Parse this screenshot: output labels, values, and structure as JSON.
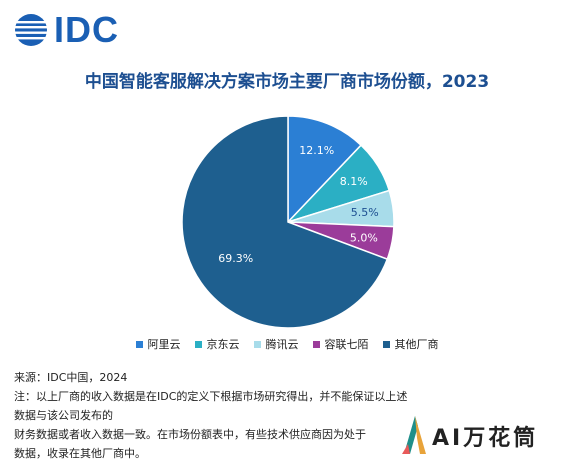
{
  "logo": {
    "text": "IDC"
  },
  "chart_data": {
    "type": "pie",
    "title": "中国智能客服解决方案市场主要厂商市场份额，2023",
    "slices": [
      {
        "label": "阿里云",
        "value": 12.1,
        "value_label": "12.1%",
        "color": "#2b7fd4"
      },
      {
        "label": "京东云",
        "value": 8.1,
        "value_label": "8.1%",
        "color": "#2bafc4"
      },
      {
        "label": "腾讯云",
        "value": 5.5,
        "value_label": "5.5%",
        "color": "#a8dcea"
      },
      {
        "label": "容联七陌",
        "value": 5.0,
        "value_label": "5.0%",
        "color": "#9b3c9a"
      },
      {
        "label": "其他厂商",
        "value": 69.3,
        "value_label": "69.3%",
        "color": "#1e5f8f"
      }
    ],
    "start": "12 o'clock",
    "direction": "clockwise",
    "legend": "bottom"
  },
  "notes": {
    "source": "来源：IDC中国，2024",
    "line1": "注：以上厂商的收入数据是在IDC的定义下根据市场研究得出，并不能保证以上述数据与该公司发布的",
    "line2": "财务数据或者收入数据一致。在市场份额表中，有些技术供应商因为处于",
    "line3": "数据，收录在其他厂商中。"
  },
  "watermark": {
    "text": "AI万花筒"
  }
}
